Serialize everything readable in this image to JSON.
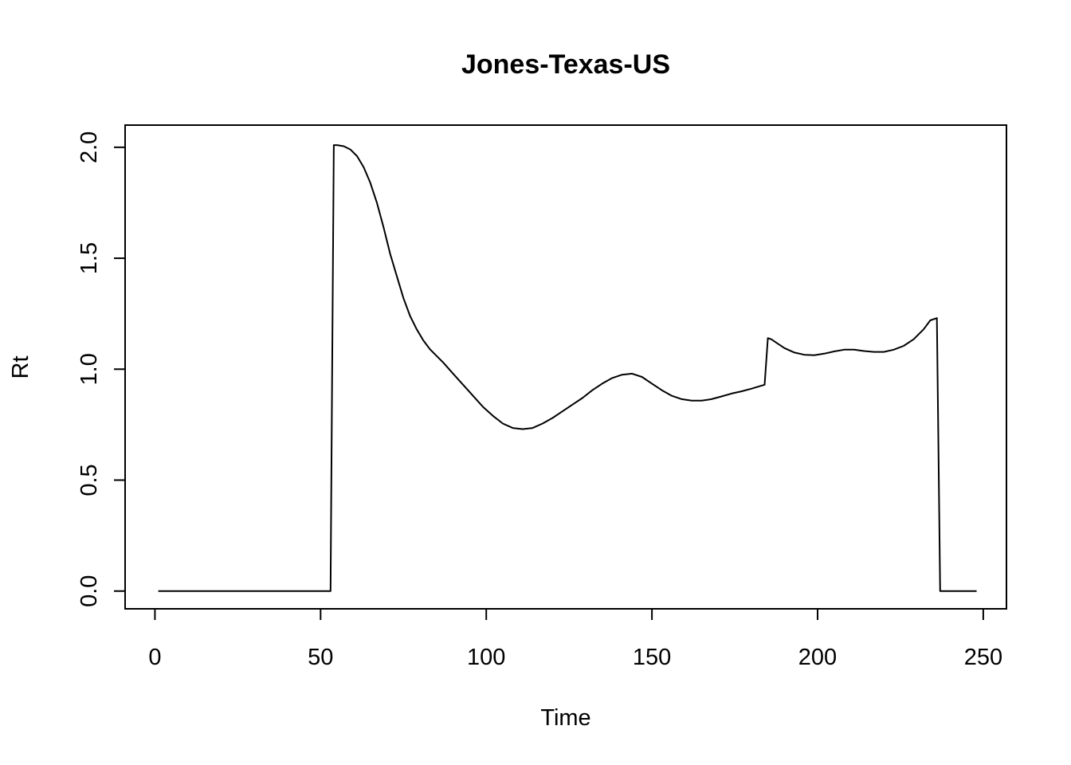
{
  "chart_data": {
    "type": "line",
    "title": "Jones-Texas-US",
    "xlabel": "Time",
    "ylabel": "Rt",
    "xlim": [
      -9,
      257
    ],
    "ylim": [
      -0.08,
      2.1
    ],
    "x_ticks": [
      0,
      50,
      100,
      150,
      200,
      250
    ],
    "y_ticks": [
      0.0,
      0.5,
      1.0,
      1.5,
      2.0
    ],
    "x_tick_labels": [
      "0",
      "50",
      "100",
      "150",
      "200",
      "250"
    ],
    "y_tick_labels": [
      "0.0",
      "0.5",
      "1.0",
      "1.5",
      "2.0"
    ],
    "grid": false,
    "legend": "none",
    "line_color": "#000000",
    "series": [
      {
        "x": [
          1,
          10,
          20,
          30,
          40,
          53,
          54,
          55,
          57,
          59,
          61,
          63,
          65,
          67,
          69,
          71,
          73,
          75,
          77,
          79,
          81,
          83,
          85,
          87,
          90,
          93,
          96,
          99,
          102,
          105,
          108,
          111,
          114,
          117,
          120,
          123,
          126,
          129,
          132,
          135,
          138,
          141,
          144,
          147,
          150,
          153,
          156,
          159,
          162,
          165,
          168,
          171,
          174,
          177,
          180,
          184,
          185,
          186,
          188,
          190,
          193,
          196,
          199,
          202,
          205,
          208,
          211,
          214,
          217,
          220,
          223,
          226,
          229,
          232,
          234,
          236,
          237,
          240,
          244,
          248
        ],
        "y": [
          0.0,
          0.0,
          0.0,
          0.0,
          0.0,
          0.0,
          2.01,
          2.01,
          2.005,
          1.99,
          1.96,
          1.91,
          1.84,
          1.75,
          1.64,
          1.52,
          1.42,
          1.32,
          1.24,
          1.18,
          1.13,
          1.09,
          1.06,
          1.03,
          0.98,
          0.93,
          0.88,
          0.83,
          0.79,
          0.755,
          0.735,
          0.73,
          0.735,
          0.755,
          0.78,
          0.81,
          0.84,
          0.87,
          0.905,
          0.935,
          0.96,
          0.975,
          0.98,
          0.965,
          0.935,
          0.905,
          0.88,
          0.865,
          0.858,
          0.858,
          0.865,
          0.877,
          0.89,
          0.9,
          0.912,
          0.93,
          1.14,
          1.135,
          1.115,
          1.095,
          1.075,
          1.065,
          1.063,
          1.07,
          1.08,
          1.088,
          1.088,
          1.082,
          1.078,
          1.078,
          1.088,
          1.105,
          1.135,
          1.18,
          1.22,
          1.23,
          0.0,
          0.0,
          0.0,
          0.0
        ]
      }
    ]
  }
}
